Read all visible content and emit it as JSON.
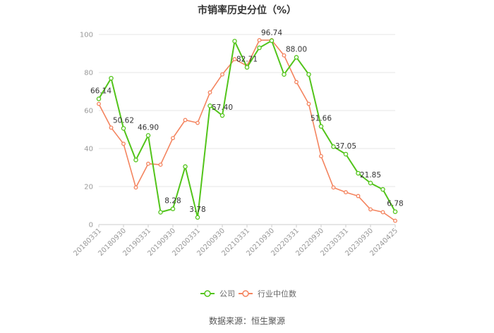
{
  "chart_data": {
    "type": "line",
    "title": "市销率历史分位（%）",
    "xlabel": "",
    "ylabel": "",
    "ylim": [
      0,
      100
    ],
    "yticks": [
      0,
      20,
      40,
      60,
      80,
      100
    ],
    "grid": true,
    "legend_position": "bottom",
    "x": [
      "20180331",
      "20180630",
      "20180930",
      "20181231",
      "20190331",
      "20190630",
      "20190930",
      "20191231",
      "20200331",
      "20200630",
      "20200930",
      "20201231",
      "20210331",
      "20210630",
      "20210930",
      "20211231",
      "20220331",
      "20220630",
      "20220930",
      "20221231",
      "20230331",
      "20230630",
      "20230930",
      "20231231",
      "20240425"
    ],
    "x_tick_labels": [
      "20180331",
      "20180930",
      "20190331",
      "20190930",
      "20200331",
      "20200930",
      "20210331",
      "20210930",
      "20220331",
      "20220930",
      "20230331",
      "20230930",
      "20240425"
    ],
    "series": [
      {
        "name": "公司",
        "color": "#52c41a",
        "values": [
          66.14,
          77.0,
          50.62,
          34.0,
          46.9,
          6.5,
          8.28,
          30.5,
          3.78,
          62.5,
          57.4,
          96.5,
          82.71,
          93.0,
          96.74,
          79.0,
          88.0,
          79.0,
          51.66,
          41.0,
          37.05,
          27.0,
          21.85,
          18.5,
          6.78
        ],
        "data_labels": [
          {
            "index": 0,
            "text": "66.14"
          },
          {
            "index": 2,
            "text": "50.62"
          },
          {
            "index": 4,
            "text": "46.90"
          },
          {
            "index": 6,
            "text": "8.28"
          },
          {
            "index": 8,
            "text": "3.78"
          },
          {
            "index": 10,
            "text": "57.40"
          },
          {
            "index": 12,
            "text": "82.71"
          },
          {
            "index": 14,
            "text": "96.74"
          },
          {
            "index": 16,
            "text": "88.00"
          },
          {
            "index": 18,
            "text": "51.66"
          },
          {
            "index": 20,
            "text": "37.05"
          },
          {
            "index": 22,
            "text": "21.85"
          },
          {
            "index": 24,
            "text": "6.78"
          }
        ]
      },
      {
        "name": "行业中位数",
        "color": "#f4845f",
        "values": [
          63.5,
          51.0,
          42.5,
          19.5,
          32.0,
          31.5,
          45.5,
          55.0,
          53.5,
          69.5,
          79.0,
          87.0,
          83.5,
          97.0,
          97.0,
          89.0,
          75.0,
          63.5,
          36.0,
          19.5,
          17.0,
          15.0,
          8.0,
          6.5,
          2.0
        ]
      }
    ]
  },
  "source": "数据来源：恒生聚源"
}
